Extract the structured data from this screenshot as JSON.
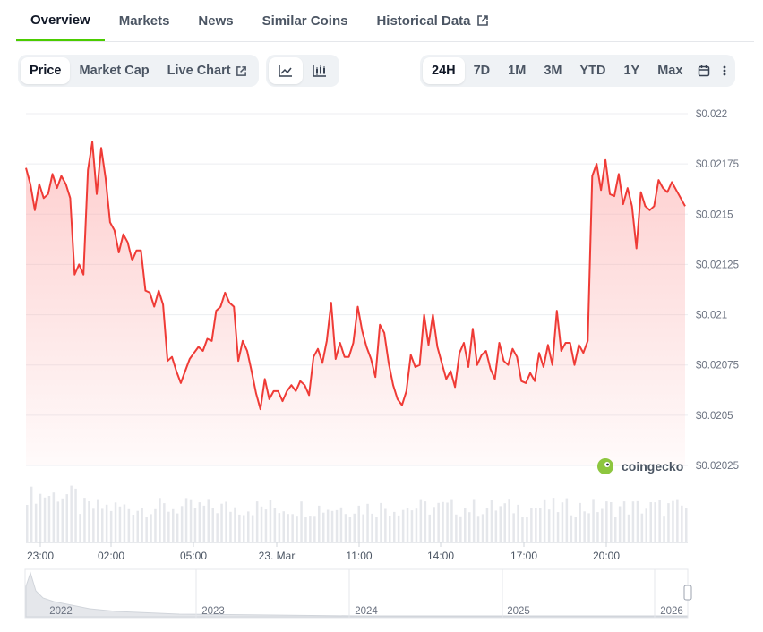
{
  "tabs": [
    {
      "label": "Overview"
    },
    {
      "label": "Markets"
    },
    {
      "label": "News"
    },
    {
      "label": "Similar Coins"
    },
    {
      "label": "Historical Data"
    }
  ],
  "toolbar": {
    "view_options": [
      "Price",
      "Market Cap",
      "Live Chart"
    ],
    "chart_type_icons": [
      "line-chart-icon",
      "candlestick-chart-icon"
    ],
    "ranges": [
      "24H",
      "7D",
      "1M",
      "3M",
      "YTD",
      "1Y",
      "Max"
    ],
    "selected_range": "24H",
    "selected_view": "Price"
  },
  "brand": {
    "name": "coingecko",
    "accent": "#4bcc00"
  },
  "colors": {
    "line": "#ef3b36",
    "fill": "#fddcdc"
  },
  "chart_data": {
    "type": "area",
    "title": "",
    "xlabel": "",
    "ylabel": "",
    "x_tick_labels": [
      "23:00",
      "02:00",
      "05:00",
      "23. Mar",
      "11:00",
      "14:00",
      "17:00",
      "20:00"
    ],
    "y_tick_labels": [
      "$0.022",
      "$0.02175",
      "$0.0215",
      "$0.02125",
      "$0.021",
      "$0.02075",
      "$0.0205",
      "$0.02025"
    ],
    "ylim": [
      0.02025,
      0.022
    ],
    "grid": true,
    "series": [
      {
        "values": [
          0.02173,
          0.02165,
          0.02152,
          0.02165,
          0.02158,
          0.0216,
          0.0217,
          0.02163,
          0.02169,
          0.02165,
          0.02158,
          0.0212,
          0.02125,
          0.0212,
          0.02172,
          0.02186,
          0.0216,
          0.02183,
          0.02168,
          0.02146,
          0.02142,
          0.02131,
          0.0214,
          0.02136,
          0.02127,
          0.02132,
          0.02132,
          0.02112,
          0.02111,
          0.02104,
          0.02112,
          0.02105,
          0.02077,
          0.02079,
          0.02072,
          0.02066,
          0.02072,
          0.02078,
          0.02081,
          0.02084,
          0.02082,
          0.02088,
          0.02087,
          0.02102,
          0.02104,
          0.02111,
          0.02106,
          0.02104,
          0.02077,
          0.02087,
          0.02082,
          0.02072,
          0.02061,
          0.02053,
          0.02068,
          0.02058,
          0.02062,
          0.02062,
          0.02057,
          0.02062,
          0.02065,
          0.02062,
          0.02067,
          0.02065,
          0.0206,
          0.02079,
          0.02083,
          0.02076,
          0.02087,
          0.02106,
          0.02078,
          0.02086,
          0.02079,
          0.02079,
          0.02086,
          0.02104,
          0.02092,
          0.02084,
          0.02078,
          0.02069,
          0.02095,
          0.02091,
          0.02076,
          0.02065,
          0.02058,
          0.02055,
          0.02062,
          0.0208,
          0.02074,
          0.02075,
          0.021,
          0.02085,
          0.021,
          0.02084,
          0.02076,
          0.02068,
          0.02072,
          0.02064,
          0.02081,
          0.02086,
          0.02074,
          0.02093,
          0.02075,
          0.0208,
          0.02082,
          0.02073,
          0.02068,
          0.02086,
          0.02077,
          0.02075,
          0.02083,
          0.02079,
          0.02067,
          0.02066,
          0.02071,
          0.02067,
          0.02081,
          0.02074,
          0.02085,
          0.02075,
          0.02102,
          0.02082,
          0.02086,
          0.02086,
          0.02075,
          0.02085,
          0.02081,
          0.02087,
          0.02169,
          0.02175,
          0.02162,
          0.02177,
          0.0216,
          0.02159,
          0.0217,
          0.02155,
          0.02163,
          0.02154,
          0.02133,
          0.02161,
          0.02154,
          0.02152,
          0.02154,
          0.02167,
          0.02163,
          0.02161,
          0.02166,
          0.02162,
          0.02158,
          0.02154
        ]
      }
    ]
  },
  "navigator": {
    "year_labels": [
      "2022",
      "2023",
      "2024",
      "2025",
      "2026"
    ]
  }
}
